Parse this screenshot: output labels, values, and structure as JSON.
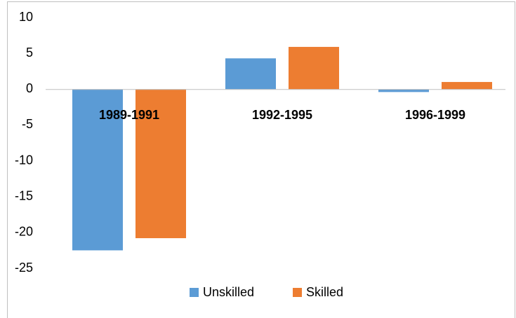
{
  "chart_data": {
    "type": "bar",
    "categories": [
      "1989-1991",
      "1992-1995",
      "1996-1999"
    ],
    "series": [
      {
        "name": "Unskilled",
        "color": "#5b9bd5",
        "values": [
          -22.5,
          4.3,
          -0.4
        ]
      },
      {
        "name": "Skilled",
        "color": "#ed7d31",
        "values": [
          -20.8,
          5.9,
          1.0
        ]
      }
    ],
    "ylim": [
      -25,
      10
    ],
    "yticks": [
      -25,
      -20,
      -15,
      -10,
      -5,
      0,
      5,
      10
    ],
    "grid": false,
    "legend": "bottom"
  }
}
